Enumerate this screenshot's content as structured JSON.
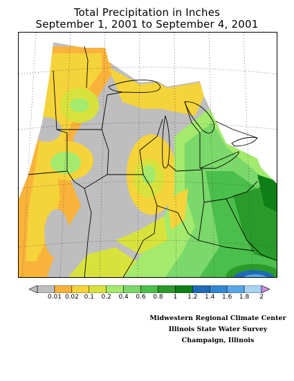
{
  "title": {
    "line1": "Total Precipitation in Inches",
    "line2": "September 1, 2001 to September 4, 2001"
  },
  "legend": {
    "labels": [
      "0.01",
      "0.02",
      "0.1",
      "0.2",
      "0.4",
      "0.6",
      "0.8",
      "1",
      "1.2",
      "1.4",
      "1.6",
      "1.8",
      "2"
    ],
    "colors": {
      "below_min": "#bebebe",
      "bins": [
        "#bebebe",
        "#f9b33a",
        "#f5d33a",
        "#d7e33c",
        "#a3ea6d",
        "#7bd86a",
        "#4bbf4b",
        "#2a9a2a",
        "#0e7f16",
        "#1f6ab6",
        "#3287d3",
        "#58a8e8",
        "#a8d3f2"
      ],
      "above_max": "#cf8ce8"
    }
  },
  "map": {
    "colors": {
      "no_data": "#ffffff",
      "trace": "#bebebe",
      "orange": "#f9b33a",
      "yellow": "#f5d33a",
      "lime": "#d7e33c",
      "light_green": "#a3ea6d",
      "green": "#7bd86a",
      "mid_green": "#4bbf4b",
      "dark_green": "#2a9a2a",
      "deep_green": "#0e7f16",
      "blue": "#1f6ab6",
      "light_blue": "#58a8e8"
    }
  },
  "credits": {
    "line1": "Midwestern Regional Climate Center",
    "line2": "Illinois State Water Survey",
    "line3": "Champaign, Illinois"
  }
}
